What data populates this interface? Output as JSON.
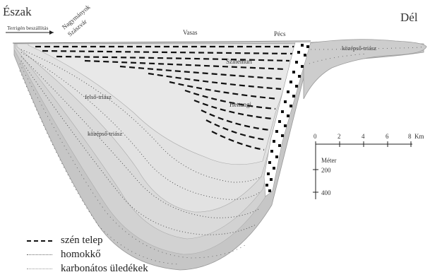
{
  "directions": {
    "north": "Észak",
    "south": "Dél"
  },
  "arrow_label": "Terrigén beszállítás",
  "places": {
    "nagymanyok": "Nagymányok",
    "szaszvar": "Szászvár",
    "vasas": "Vasas",
    "pecs": "Pécs"
  },
  "units": {
    "szinemuri": "Szinemuri",
    "hettangi": "Hettangi",
    "felso_triasz": "felső-triász",
    "kozepso_triasz_left": "középső-triász",
    "kozepso_triasz_right": "középső-triász"
  },
  "scale": {
    "horizontal_ticks": [
      "0",
      "2",
      "4",
      "6",
      "8"
    ],
    "horizontal_unit": "Km",
    "vertical_title": "Méter",
    "vertical_ticks": [
      "200",
      "400"
    ]
  },
  "legend": [
    {
      "label": "szén telep",
      "style": "dashed-bold"
    },
    {
      "label": "homokkő",
      "style": "dotted"
    },
    {
      "label": "karbonátos üledékek",
      "style": "dotted-sparse"
    }
  ],
  "colors": {
    "layer_outer": "#c9c9c9",
    "layer_inner": "#dedede",
    "coal": "#111111",
    "fault_fill": "#ffffff"
  }
}
